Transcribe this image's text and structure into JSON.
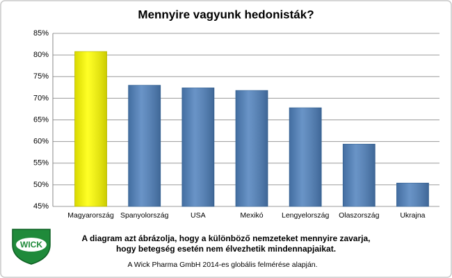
{
  "chart_data": {
    "type": "bar",
    "title": "Mennyire vagyunk hedonisták?",
    "categories": [
      "Magyarország",
      "Spanyolország",
      "USA",
      "Mexikó",
      "Lengyelország",
      "Olaszország",
      "Ukrajna"
    ],
    "values": [
      80.8,
      73,
      72.4,
      71.8,
      67.8,
      59.4,
      50.4
    ],
    "colors": [
      "#ffff00",
      "#4f81bd",
      "#4f81bd",
      "#4f81bd",
      "#4f81bd",
      "#4f81bd",
      "#4f81bd"
    ],
    "ylim": [
      45,
      85
    ],
    "yticks": [
      {
        "value": 45,
        "label": "45%"
      },
      {
        "value": 50,
        "label": "50%"
      },
      {
        "value": 55,
        "label": "55%"
      },
      {
        "value": 60,
        "label": "60%"
      },
      {
        "value": 65,
        "label": "65%"
      },
      {
        "value": 70,
        "label": "70%"
      },
      {
        "value": 75,
        "label": "75%"
      },
      {
        "value": 80,
        "label": "80%"
      },
      {
        "value": 85,
        "label": "85%"
      }
    ],
    "grid": true,
    "caption": [
      "A diagram azt ábrázolja, hogy  a különböző nemzeteket mennyire zavarja,",
      "hogy betegség esetén nem élvezhetik mindennapjaikat."
    ],
    "source": "A Wick Pharma GmbH 2014-es globális felmérése alapján.",
    "logo": "WICK"
  }
}
